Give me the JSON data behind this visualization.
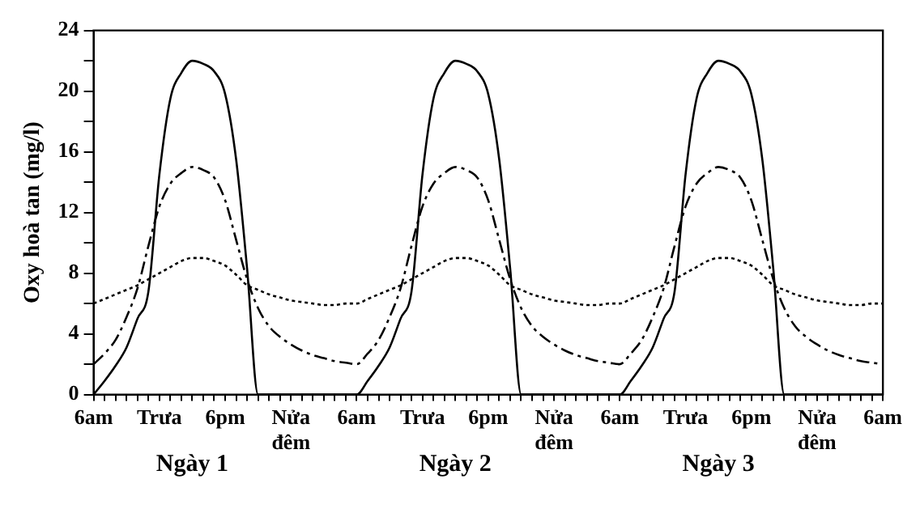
{
  "chart_data": {
    "type": "line",
    "ylabel": "Oxy hoà tan (mg/l)",
    "categories": [
      "6am",
      null,
      null,
      null,
      null,
      null,
      "Trưa",
      null,
      null,
      null,
      null,
      null,
      "6pm",
      null,
      null,
      null,
      null,
      null,
      "Nửa đêm",
      null,
      null,
      null,
      null,
      null,
      "6am",
      null,
      null,
      null,
      null,
      null,
      "Trưa",
      null,
      null,
      null,
      null,
      null,
      "6pm",
      null,
      null,
      null,
      null,
      null,
      "Nửa đêm",
      null,
      null,
      null,
      null,
      null,
      "6am",
      null,
      null,
      null,
      null,
      null,
      "Trưa",
      null,
      null,
      null,
      null,
      null,
      "6pm",
      null,
      null,
      null,
      null,
      null,
      "Nửa đêm",
      null,
      null,
      null,
      null,
      null,
      "6am"
    ],
    "ylim": [
      0,
      24
    ],
    "yticks": [
      0,
      {
        "value": 2,
        "label": null
      },
      4,
      {
        "value": 6,
        "label": null
      },
      8,
      {
        "value": 10,
        "label": null
      },
      12,
      {
        "value": 14,
        "label": null
      },
      16,
      {
        "value": 18,
        "label": null
      },
      20,
      {
        "value": 22,
        "label": null
      },
      24
    ],
    "marker": "none",
    "annotations": [
      "Ngày 1",
      "Ngày 2",
      "Ngày 3"
    ],
    "series": [
      {
        "color": "#000000",
        "line_style": "solid",
        "values": [
          0,
          0.9,
          1.9,
          3.1,
          5,
          6.8,
          14.5,
          19.5,
          21.2,
          22,
          21.8,
          21.3,
          19.8,
          15.5,
          8.3,
          0,
          0,
          0,
          0,
          0,
          0,
          0,
          0,
          0,
          0,
          0.9,
          1.9,
          3.1,
          5,
          6.8,
          14.5,
          19.5,
          21.2,
          22,
          21.8,
          21.3,
          19.8,
          15.5,
          8.3,
          0,
          0,
          0,
          0,
          0,
          0,
          0,
          0,
          0,
          0,
          0.9,
          1.9,
          3.1,
          5,
          6.8,
          14.5,
          19.5,
          21.2,
          22,
          21.8,
          21.3,
          19.8,
          15.5,
          8.3,
          0,
          0,
          0,
          0,
          0,
          0,
          0,
          0,
          0,
          0
        ]
      },
      {
        "color": "#000000",
        "line_style": "dashed",
        "values": [
          2,
          2.7,
          3.6,
          5.1,
          7,
          9.8,
          12.4,
          13.9,
          14.6,
          15,
          14.8,
          14.3,
          12.8,
          10.2,
          7.6,
          5.7,
          4.5,
          3.8,
          3.3,
          2.9,
          2.6,
          2.4,
          2.2,
          2.1,
          2,
          2.7,
          3.6,
          5.1,
          7,
          9.8,
          12.4,
          13.9,
          14.6,
          15,
          14.8,
          14.3,
          12.8,
          10.2,
          7.6,
          5.7,
          4.5,
          3.8,
          3.3,
          2.9,
          2.6,
          2.4,
          2.2,
          2.1,
          2,
          2.7,
          3.6,
          5.1,
          7,
          9.8,
          12.4,
          13.9,
          14.6,
          15,
          14.8,
          14.3,
          12.8,
          10.2,
          7.6,
          5.7,
          4.5,
          3.8,
          3.3,
          2.9,
          2.6,
          2.4,
          2.2,
          2.1,
          2
        ]
      },
      {
        "color": "#000000",
        "line_style": "dotted",
        "values": [
          6,
          6.3,
          6.6,
          6.9,
          7.2,
          7.6,
          8,
          8.4,
          8.8,
          9,
          9,
          8.8,
          8.5,
          7.9,
          7.2,
          6.9,
          6.6,
          6.4,
          6.2,
          6.1,
          6,
          5.9,
          5.9,
          6,
          6,
          6.3,
          6.6,
          6.9,
          7.2,
          7.6,
          8,
          8.4,
          8.8,
          9,
          9,
          8.8,
          8.5,
          7.9,
          7.2,
          6.9,
          6.6,
          6.4,
          6.2,
          6.1,
          6,
          5.9,
          5.9,
          6,
          6,
          6.3,
          6.6,
          6.9,
          7.2,
          7.6,
          8,
          8.4,
          8.8,
          9,
          9,
          8.8,
          8.5,
          7.9,
          7.2,
          6.9,
          6.6,
          6.4,
          6.2,
          6.1,
          6,
          5.9,
          5.9,
          6,
          6
        ]
      }
    ]
  }
}
